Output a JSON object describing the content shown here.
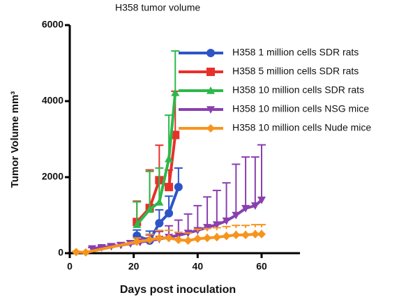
{
  "chart_data": {
    "type": "line",
    "title": "H358 tumor volume",
    "x_label": "Days post inoculation",
    "y_label": "Tumor Volume mm³",
    "xlim": [
      0,
      72
    ],
    "xticks": [
      0,
      20,
      40,
      60
    ],
    "ylim": [
      0,
      6000
    ],
    "yticks": [
      0,
      2000,
      4000,
      6000
    ],
    "series": [
      {
        "name": "H358  1 million cells SDR rats",
        "color": "#2d55c8",
        "marker": "circle",
        "x": [
          21,
          25,
          28,
          31,
          34
        ],
        "values": [
          460,
          330,
          790,
          1050,
          1740
        ],
        "errors": [
          150,
          250,
          350,
          450,
          500
        ]
      },
      {
        "name": "H358  5 million cells SDR rats",
        "color": "#e8302a",
        "marker": "square",
        "x": [
          21,
          25,
          28,
          31,
          33
        ],
        "values": [
          820,
          1190,
          1920,
          1740,
          3110
        ],
        "errors": [
          550,
          1000,
          920,
          450,
          1150
        ]
      },
      {
        "name": "H358  10 million cells SDR rats",
        "color": "#2db84a",
        "marker": "triangle",
        "x": [
          21,
          25,
          28,
          31,
          33
        ],
        "values": [
          750,
          1150,
          1340,
          2480,
          4220
        ],
        "errors": [
          600,
          1000,
          900,
          1150,
          1100
        ]
      },
      {
        "name": "H358 10 million cells NSG mice",
        "color": "#8a3fb0",
        "marker": "down-triangle",
        "x": [
          7,
          10,
          13,
          16,
          19,
          22,
          25,
          28,
          31,
          34,
          37,
          40,
          43,
          46,
          49,
          52,
          55,
          58,
          60
        ],
        "values": [
          120,
          150,
          180,
          210,
          250,
          290,
          330,
          370,
          420,
          470,
          530,
          600,
          680,
          750,
          850,
          1000,
          1180,
          1250,
          1400
        ],
        "errors": [
          30,
          40,
          50,
          60,
          80,
          100,
          150,
          200,
          300,
          400,
          500,
          650,
          800,
          900,
          1000,
          1340,
          1350,
          1280,
          1450
        ]
      },
      {
        "name": "H358 10 million cells Nude mice",
        "color": "#f7941d",
        "marker": "diamond",
        "x": [
          2,
          5,
          21,
          25,
          28,
          31,
          34,
          37,
          40,
          43,
          46,
          49,
          52,
          55,
          58,
          60
        ],
        "values": [
          30,
          20,
          300,
          350,
          400,
          400,
          350,
          330,
          380,
          400,
          420,
          450,
          480,
          480,
          500,
          500
        ],
        "errors": [
          20,
          20,
          100,
          150,
          200,
          200,
          200,
          200,
          250,
          250,
          250,
          250,
          250,
          250,
          250,
          250
        ]
      }
    ]
  }
}
